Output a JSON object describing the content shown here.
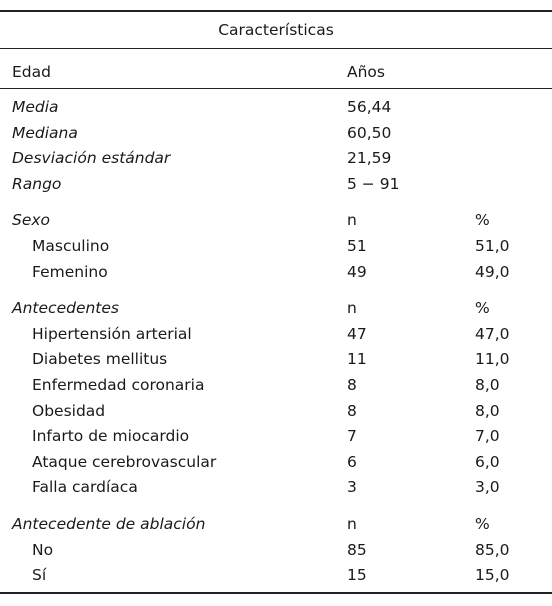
{
  "header": {
    "title": "Características"
  },
  "table": {
    "head": [
      "Edad",
      "Años"
    ],
    "stats": [
      [
        "Media",
        "56,44"
      ],
      [
        "Mediana",
        "60,50"
      ],
      [
        "Desviación estándar",
        "21,59"
      ],
      [
        "Rango",
        "5 − 91"
      ]
    ],
    "groups": [
      {
        "title": "Sexo",
        "cols": [
          "n",
          "%"
        ],
        "rows": [
          [
            "Masculino",
            "51",
            "51,0"
          ],
          [
            "Femenino",
            "49",
            "49,0"
          ]
        ]
      },
      {
        "title": "Antecedentes",
        "cols": [
          "n",
          "%"
        ],
        "rows": [
          [
            "Hipertensión arterial",
            "47",
            "47,0"
          ],
          [
            "Diabetes mellitus",
            "11",
            "11,0"
          ],
          [
            "Enfermedad coronaria",
            "8",
            "8,0"
          ],
          [
            "Obesidad",
            "8",
            "8,0"
          ],
          [
            "Infarto de miocardio",
            "7",
            "7,0"
          ],
          [
            "Ataque cerebrovascular",
            "6",
            "6,0"
          ],
          [
            "Falla cardíaca",
            "3",
            "3,0"
          ]
        ]
      },
      {
        "title": "Antecedente de ablación",
        "cols": [
          "n",
          "%"
        ],
        "rows": [
          [
            "No",
            "85",
            "85,0"
          ],
          [
            "Sí",
            "15",
            "15,0"
          ]
        ]
      }
    ]
  }
}
